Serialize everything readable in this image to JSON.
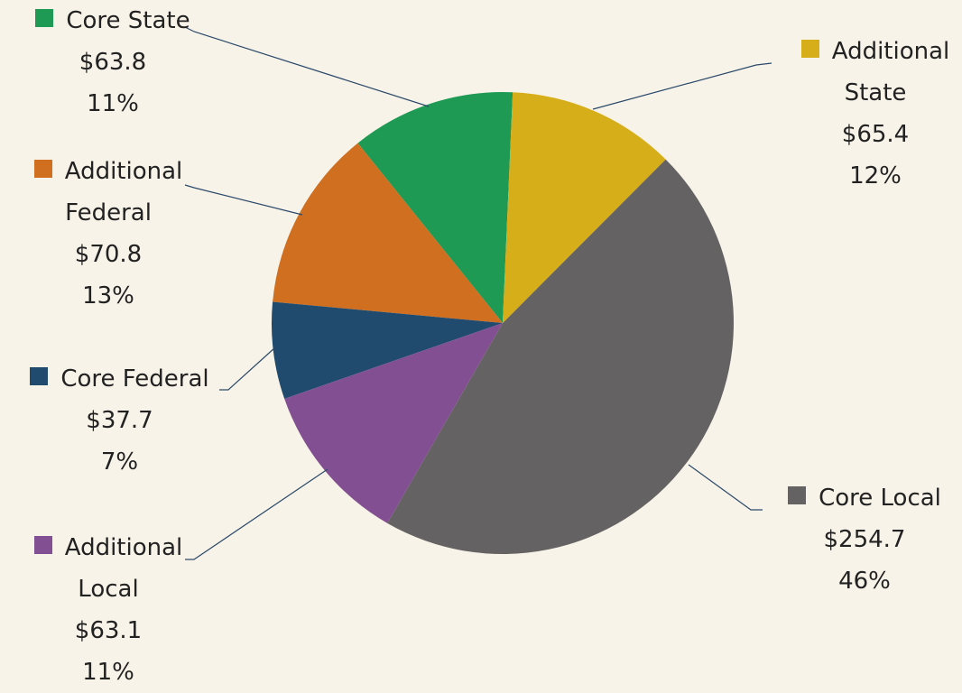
{
  "chart_data": {
    "type": "pie",
    "categories": [
      "Additional State",
      "Core Local",
      "Additional Local",
      "Core Federal",
      "Additional Federal",
      "Core State"
    ],
    "values": [
      65.4,
      254.7,
      63.1,
      37.7,
      70.8,
      63.8
    ],
    "value_labels": [
      "$65.4",
      "$254.7",
      "$63.1",
      "$37.7",
      "$70.8",
      "$63.8"
    ],
    "percent_labels": [
      "12%",
      "46%",
      "11%",
      "7%",
      "13%",
      "11%"
    ],
    "colors": [
      "#d6ae19",
      "#656263",
      "#834f93",
      "#214b6e",
      "#cf6f1f",
      "#1f9a55"
    ]
  }
}
